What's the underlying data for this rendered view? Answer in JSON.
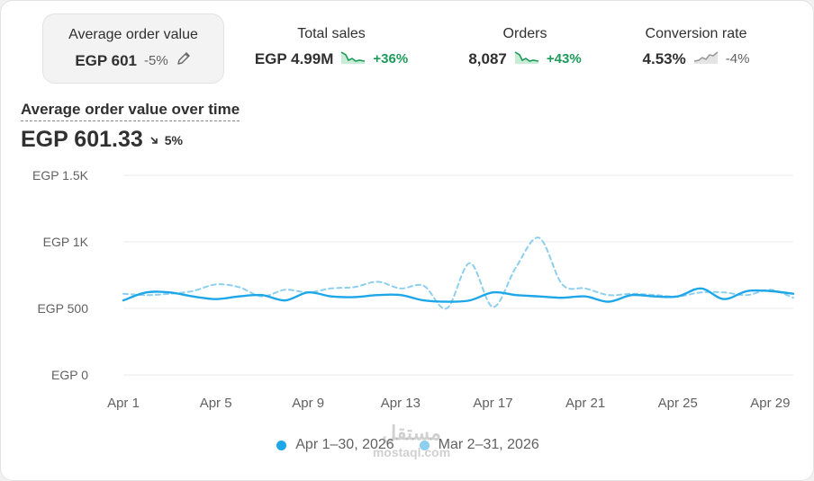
{
  "metrics": [
    {
      "label": "Average order value",
      "value": "EGP 601",
      "delta": "-5%",
      "spark_icon": "pencil-icon"
    },
    {
      "label": "Total sales",
      "value": "EGP 4.99M",
      "delta": "+36%",
      "spark_icon": "sparkline-up-icon"
    },
    {
      "label": "Orders",
      "value": "8,087",
      "delta": "+43%",
      "spark_icon": "sparkline-up-icon"
    },
    {
      "label": "Conversion rate",
      "value": "4.53%",
      "delta": "-4%",
      "spark_icon": "sparkline-flat-icon"
    }
  ],
  "chart_title": "Average order value over time",
  "headline_value": "EGP 601.33",
  "headline_delta": "5%",
  "colors": {
    "current": "#1ea7e8",
    "previous": "#8ccfee",
    "positive": "#1e9a5a",
    "grid": "#ebebeb"
  },
  "watermark": {
    "line1": "مستقل",
    "line2": "mostaql.com"
  },
  "chart_data": {
    "type": "line",
    "title": "Average order value over time",
    "xlabel": "",
    "ylabel": "",
    "y_tick_labels": [
      "EGP 0",
      "EGP 500",
      "EGP 1K",
      "EGP 1.5K"
    ],
    "y_ticks": [
      0,
      500,
      1000,
      1500
    ],
    "ylim": [
      0,
      1500
    ],
    "x_tick_labels": [
      "Apr 1",
      "Apr 5",
      "Apr 9",
      "Apr 13",
      "Apr 17",
      "Apr 21",
      "Apr 25",
      "Apr 29"
    ],
    "x_tick_days": [
      1,
      5,
      9,
      13,
      17,
      21,
      25,
      29
    ],
    "grid": true,
    "legend_position": "bottom",
    "series": [
      {
        "name": "Apr 1–30, 2026",
        "style": "solid",
        "x": [
          1,
          2,
          3,
          4,
          5,
          6,
          7,
          8,
          9,
          10,
          11,
          12,
          13,
          14,
          15,
          16,
          17,
          18,
          19,
          20,
          21,
          22,
          23,
          24,
          25,
          26,
          27,
          28,
          29,
          30
        ],
        "values": [
          560,
          620,
          620,
          590,
          570,
          590,
          600,
          560,
          620,
          590,
          585,
          600,
          600,
          560,
          550,
          560,
          620,
          600,
          590,
          580,
          590,
          550,
          600,
          590,
          590,
          650,
          570,
          630,
          630,
          610
        ]
      },
      {
        "name": "Mar 2–31, 2026",
        "style": "dashed",
        "x": [
          1,
          2,
          3,
          4,
          5,
          6,
          7,
          8,
          9,
          10,
          11,
          12,
          13,
          14,
          15,
          16,
          17,
          18,
          19,
          20,
          21,
          22,
          23,
          24,
          25,
          26,
          27,
          28,
          29,
          30
        ],
        "values": [
          610,
          600,
          610,
          630,
          680,
          660,
          590,
          640,
          620,
          650,
          660,
          700,
          650,
          670,
          500,
          840,
          510,
          810,
          1030,
          680,
          650,
          600,
          610,
          600,
          590,
          620,
          620,
          600,
          640,
          580
        ]
      }
    ]
  }
}
